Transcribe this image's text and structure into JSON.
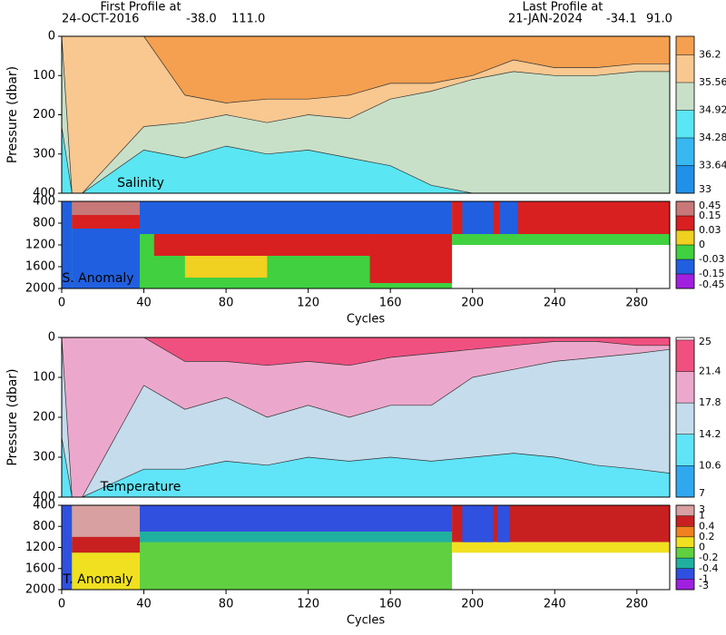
{
  "header": {
    "first_title": "First Profile at",
    "first_date": "24-OCT-2016",
    "first_lat": "-38.0",
    "first_lon": "111.0",
    "last_title": "Last Profile at",
    "last_date": "21-JAN-2024",
    "last_lat": "-34.1",
    "last_lon": "91.0"
  },
  "chart_data": [
    {
      "type": "contour",
      "label": "Salinity",
      "y_label": "Pressure (dbar)",
      "ylim": [
        0,
        400
      ],
      "y_inverted": true,
      "yticks": [
        0,
        100,
        200,
        300,
        400
      ],
      "xlim": [
        0,
        296
      ],
      "x": [
        0,
        5,
        10,
        40,
        60,
        80,
        100,
        120,
        140,
        160,
        180,
        200,
        220,
        240,
        260,
        280,
        296
      ],
      "isolines": [
        {
          "level": 34.92,
          "depths": [
            230,
            400,
            400,
            290,
            310,
            280,
            300,
            290,
            310,
            330,
            380,
            400,
            400,
            400,
            400,
            400,
            400
          ]
        },
        {
          "level": 35.56,
          "depths": [
            0,
            400,
            400,
            230,
            220,
            200,
            220,
            200,
            210,
            160,
            140,
            110,
            90,
            100,
            100,
            90,
            90
          ]
        },
        {
          "level": 36.2,
          "depths": [
            0,
            0,
            0,
            0,
            150,
            170,
            160,
            160,
            150,
            120,
            120,
            100,
            60,
            80,
            80,
            70,
            70
          ]
        }
      ],
      "colorbar": {
        "scale": "linear",
        "ticks": [
          33,
          33.64,
          34.28,
          34.92,
          35.56,
          36.2
        ],
        "clim": [
          33,
          36.63
        ],
        "colors": [
          "#2090e8",
          "#38b8f0",
          "#5ae6f2",
          "#c8e0c8",
          "#f8c890",
          "#f4a050"
        ]
      }
    },
    {
      "type": "heatmap",
      "label": "S. Anomaly",
      "x_label": "Cycles",
      "ylim": [
        400,
        2000
      ],
      "y_inverted": true,
      "yticks": [
        400,
        800,
        1200,
        1600,
        2000
      ],
      "xlim": [
        0,
        296
      ],
      "xticks": [
        0,
        40,
        80,
        120,
        160,
        200,
        240,
        280
      ],
      "blocks": [
        {
          "x": [
            0,
            190
          ],
          "p": [
            400,
            2000
          ],
          "value": -0.01
        },
        {
          "x": [
            0,
            5
          ],
          "p": [
            400,
            2000
          ],
          "value": -0.1
        },
        {
          "x": [
            5,
            38
          ],
          "p": [
            400,
            900
          ],
          "value": 0.3
        },
        {
          "x": [
            5,
            38
          ],
          "p": [
            650,
            900
          ],
          "value": 0.1
        },
        {
          "x": [
            5,
            38
          ],
          "p": [
            900,
            2000
          ],
          "value": -0.1
        },
        {
          "x": [
            38,
            190
          ],
          "p": [
            400,
            1000
          ],
          "value": -0.1
        },
        {
          "x": [
            45,
            150
          ],
          "p": [
            1000,
            1400
          ],
          "value": 0.1
        },
        {
          "x": [
            150,
            190
          ],
          "p": [
            1000,
            1900
          ],
          "value": 0.1
        },
        {
          "x": [
            60,
            100
          ],
          "p": [
            1400,
            1800
          ],
          "value": 0.01
        },
        {
          "x": [
            190,
            296
          ],
          "p": [
            400,
            1000
          ],
          "value": 0.1
        },
        {
          "x": [
            195,
            210
          ],
          "p": [
            400,
            1000
          ],
          "value": -0.1
        },
        {
          "x": [
            213,
            222
          ],
          "p": [
            400,
            1000
          ],
          "value": -0.1
        },
        {
          "x": [
            190,
            296
          ],
          "p": [
            1000,
            1200
          ],
          "value": -0.01
        }
      ],
      "colorbar": {
        "scale": "index",
        "ticks": [
          -0.45,
          -0.15,
          -0.03,
          0,
          0.03,
          0.15,
          0.45
        ],
        "colors": [
          "#a020e0",
          "#2060e0",
          "#40d040",
          "#f0d020",
          "#d82020",
          "#c87878"
        ]
      }
    },
    {
      "type": "contour",
      "label": "Temperature",
      "y_label": "Pressure (dbar)",
      "ylim": [
        0,
        400
      ],
      "y_inverted": true,
      "yticks": [
        0,
        100,
        200,
        300,
        400
      ],
      "xlim": [
        0,
        296
      ],
      "x": [
        0,
        5,
        10,
        40,
        60,
        80,
        100,
        120,
        140,
        160,
        180,
        200,
        220,
        240,
        260,
        280,
        296
      ],
      "isolines": [
        {
          "level": 14.2,
          "depths": [
            250,
            400,
            400,
            330,
            330,
            310,
            320,
            300,
            310,
            300,
            310,
            300,
            290,
            300,
            320,
            330,
            340
          ]
        },
        {
          "level": 17.8,
          "depths": [
            0,
            400,
            400,
            120,
            180,
            150,
            200,
            170,
            200,
            170,
            170,
            100,
            80,
            60,
            50,
            40,
            30
          ]
        },
        {
          "level": 21.4,
          "depths": [
            0,
            0,
            0,
            0,
            60,
            60,
            70,
            60,
            70,
            50,
            40,
            30,
            20,
            10,
            10,
            20,
            20
          ]
        }
      ],
      "colorbar": {
        "scale": "linear",
        "ticks": [
          7,
          10.6,
          14.2,
          17.8,
          21.4,
          25
        ],
        "clim": [
          7,
          25.3
        ],
        "colors": [
          "#30a8f0",
          "#60e4f8",
          "#c4dcec",
          "#eca8cc",
          "#f05080"
        ]
      }
    },
    {
      "type": "heatmap",
      "label": "T. Anomaly",
      "x_label": "Cycles",
      "ylim": [
        400,
        2000
      ],
      "y_inverted": true,
      "yticks": [
        400,
        800,
        1200,
        1600,
        2000
      ],
      "xlim": [
        0,
        296
      ],
      "xticks": [
        0,
        40,
        80,
        120,
        160,
        200,
        240,
        280
      ],
      "blocks": [
        {
          "x": [
            0,
            190
          ],
          "p": [
            400,
            2000
          ],
          "value": -0.1
        },
        {
          "x": [
            0,
            5
          ],
          "p": [
            400,
            2000
          ],
          "value": -0.5
        },
        {
          "x": [
            5,
            38
          ],
          "p": [
            400,
            1100
          ],
          "value": 2
        },
        {
          "x": [
            5,
            38
          ],
          "p": [
            1000,
            1300
          ],
          "value": 0.6
        },
        {
          "x": [
            5,
            38
          ],
          "p": [
            1300,
            2000
          ],
          "value": 0.1
        },
        {
          "x": [
            38,
            190
          ],
          "p": [
            400,
            900
          ],
          "value": -0.6
        },
        {
          "x": [
            38,
            190
          ],
          "p": [
            900,
            1100
          ],
          "value": -0.3
        },
        {
          "x": [
            190,
            296
          ],
          "p": [
            400,
            1100
          ],
          "value": 0.6
        },
        {
          "x": [
            190,
            296
          ],
          "p": [
            1100,
            1300
          ],
          "value": 0.1
        },
        {
          "x": [
            195,
            210
          ],
          "p": [
            400,
            1100
          ],
          "value": -0.6
        },
        {
          "x": [
            212,
            218
          ],
          "p": [
            400,
            1100
          ],
          "value": -0.6
        }
      ],
      "colorbar": {
        "scale": "index",
        "ticks": [
          -3,
          -1,
          -0.4,
          -0.2,
          0,
          0.2,
          0.4,
          1,
          3
        ],
        "colors": [
          "#a020e0",
          "#3050e0",
          "#20b0a0",
          "#60d040",
          "#f0e020",
          "#f08020",
          "#c82020",
          "#d8a0a0"
        ]
      }
    }
  ]
}
